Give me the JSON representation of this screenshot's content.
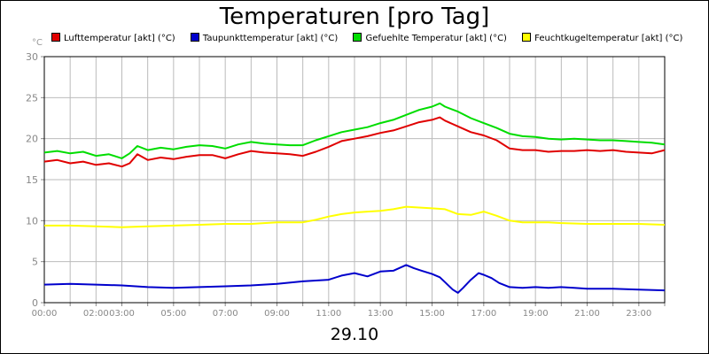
{
  "chart_data": {
    "type": "line",
    "title": "Temperaturen [pro Tag]",
    "date_label": "29.10",
    "y_unit": "°C",
    "ylim": [
      0,
      30
    ],
    "y_ticks": [
      "0",
      "5",
      "10",
      "15",
      "20",
      "25",
      "30"
    ],
    "x_range_hours": [
      0,
      24
    ],
    "x_ticks": [
      {
        "hour": 0,
        "label": "00:00"
      },
      {
        "hour": 2,
        "label": "02:00"
      },
      {
        "hour": 3,
        "label": "03:00"
      },
      {
        "hour": 5,
        "label": "05:00"
      },
      {
        "hour": 7,
        "label": "07:00"
      },
      {
        "hour": 9,
        "label": "09:00"
      },
      {
        "hour": 11,
        "label": "11:00"
      },
      {
        "hour": 13,
        "label": "13:00"
      },
      {
        "hour": 15,
        "label": "15:00"
      },
      {
        "hour": 17,
        "label": "17:00"
      },
      {
        "hour": 19,
        "label": "19:00"
      },
      {
        "hour": 21,
        "label": "21:00"
      },
      {
        "hour": 23,
        "label": "23:00"
      }
    ],
    "grid": true,
    "legend_position": "top",
    "series": [
      {
        "name": "Lufttemperatur [akt] (°C)",
        "color": "#e00000",
        "points": [
          [
            0,
            17.2
          ],
          [
            0.5,
            17.4
          ],
          [
            1,
            17.0
          ],
          [
            1.5,
            17.2
          ],
          [
            2,
            16.8
          ],
          [
            2.5,
            17.0
          ],
          [
            3,
            16.6
          ],
          [
            3.3,
            17.0
          ],
          [
            3.6,
            18.1
          ],
          [
            4,
            17.4
          ],
          [
            4.5,
            17.7
          ],
          [
            5,
            17.5
          ],
          [
            5.5,
            17.8
          ],
          [
            6,
            18.0
          ],
          [
            6.5,
            18.0
          ],
          [
            7,
            17.6
          ],
          [
            7.5,
            18.1
          ],
          [
            8,
            18.5
          ],
          [
            8.5,
            18.3
          ],
          [
            9,
            18.2
          ],
          [
            9.5,
            18.1
          ],
          [
            10,
            17.9
          ],
          [
            10.5,
            18.4
          ],
          [
            11,
            19.0
          ],
          [
            11.5,
            19.7
          ],
          [
            12,
            20.0
          ],
          [
            12.5,
            20.3
          ],
          [
            13,
            20.7
          ],
          [
            13.5,
            21.0
          ],
          [
            14,
            21.5
          ],
          [
            14.5,
            22.0
          ],
          [
            15,
            22.3
          ],
          [
            15.3,
            22.6
          ],
          [
            15.5,
            22.2
          ],
          [
            16,
            21.5
          ],
          [
            16.5,
            20.8
          ],
          [
            17,
            20.4
          ],
          [
            17.5,
            19.8
          ],
          [
            18,
            18.8
          ],
          [
            18.5,
            18.6
          ],
          [
            19,
            18.6
          ],
          [
            19.5,
            18.4
          ],
          [
            20,
            18.5
          ],
          [
            20.5,
            18.5
          ],
          [
            21,
            18.6
          ],
          [
            21.5,
            18.5
          ],
          [
            22,
            18.6
          ],
          [
            22.5,
            18.4
          ],
          [
            23,
            18.3
          ],
          [
            23.5,
            18.2
          ],
          [
            24,
            18.6
          ]
        ]
      },
      {
        "name": "Taupunkttemperatur [akt] (°C)",
        "color": "#0000cc",
        "points": [
          [
            0,
            2.2
          ],
          [
            1,
            2.3
          ],
          [
            2,
            2.2
          ],
          [
            3,
            2.1
          ],
          [
            4,
            1.9
          ],
          [
            5,
            1.8
          ],
          [
            6,
            1.9
          ],
          [
            7,
            2.0
          ],
          [
            8,
            2.1
          ],
          [
            9,
            2.3
          ],
          [
            10,
            2.6
          ],
          [
            11,
            2.8
          ],
          [
            11.5,
            3.3
          ],
          [
            12,
            3.6
          ],
          [
            12.5,
            3.2
          ],
          [
            13,
            3.8
          ],
          [
            13.5,
            3.9
          ],
          [
            14,
            4.6
          ],
          [
            14.3,
            4.2
          ],
          [
            14.6,
            3.9
          ],
          [
            15,
            3.5
          ],
          [
            15.3,
            3.1
          ],
          [
            15.5,
            2.5
          ],
          [
            15.8,
            1.6
          ],
          [
            16,
            1.2
          ],
          [
            16.2,
            1.8
          ],
          [
            16.5,
            2.8
          ],
          [
            16.8,
            3.6
          ],
          [
            17,
            3.4
          ],
          [
            17.3,
            3.0
          ],
          [
            17.6,
            2.4
          ],
          [
            18,
            1.9
          ],
          [
            18.5,
            1.8
          ],
          [
            19,
            1.9
          ],
          [
            19.5,
            1.8
          ],
          [
            20,
            1.9
          ],
          [
            20.5,
            1.8
          ],
          [
            21,
            1.7
          ],
          [
            22,
            1.7
          ],
          [
            23,
            1.6
          ],
          [
            24,
            1.5
          ]
        ]
      },
      {
        "name": "Gefuehlte Temperatur [akt] (°C)",
        "color": "#00dd00",
        "points": [
          [
            0,
            18.3
          ],
          [
            0.5,
            18.5
          ],
          [
            1,
            18.2
          ],
          [
            1.5,
            18.4
          ],
          [
            2,
            17.9
          ],
          [
            2.5,
            18.1
          ],
          [
            3,
            17.6
          ],
          [
            3.3,
            18.2
          ],
          [
            3.6,
            19.1
          ],
          [
            4,
            18.6
          ],
          [
            4.5,
            18.9
          ],
          [
            5,
            18.7
          ],
          [
            5.5,
            19.0
          ],
          [
            6,
            19.2
          ],
          [
            6.5,
            19.1
          ],
          [
            7,
            18.8
          ],
          [
            7.5,
            19.3
          ],
          [
            8,
            19.6
          ],
          [
            8.5,
            19.4
          ],
          [
            9,
            19.3
          ],
          [
            9.5,
            19.2
          ],
          [
            10,
            19.2
          ],
          [
            10.5,
            19.8
          ],
          [
            11,
            20.3
          ],
          [
            11.5,
            20.8
          ],
          [
            12,
            21.1
          ],
          [
            12.5,
            21.4
          ],
          [
            13,
            21.9
          ],
          [
            13.5,
            22.3
          ],
          [
            14,
            22.9
          ],
          [
            14.5,
            23.5
          ],
          [
            15,
            23.9
          ],
          [
            15.3,
            24.3
          ],
          [
            15.5,
            23.9
          ],
          [
            16,
            23.3
          ],
          [
            16.5,
            22.5
          ],
          [
            17,
            21.9
          ],
          [
            17.5,
            21.3
          ],
          [
            18,
            20.6
          ],
          [
            18.5,
            20.3
          ],
          [
            19,
            20.2
          ],
          [
            19.5,
            20.0
          ],
          [
            20,
            19.9
          ],
          [
            20.5,
            20.0
          ],
          [
            21,
            19.9
          ],
          [
            21.5,
            19.8
          ],
          [
            22,
            19.8
          ],
          [
            22.5,
            19.7
          ],
          [
            23,
            19.6
          ],
          [
            23.5,
            19.5
          ],
          [
            24,
            19.3
          ]
        ]
      },
      {
        "name": "Feuchtkugeltemperatur [akt] (°C)",
        "color": "#ffff00",
        "points": [
          [
            0,
            9.4
          ],
          [
            1,
            9.4
          ],
          [
            2,
            9.3
          ],
          [
            3,
            9.2
          ],
          [
            4,
            9.3
          ],
          [
            5,
            9.4
          ],
          [
            6,
            9.5
          ],
          [
            7,
            9.6
          ],
          [
            8,
            9.6
          ],
          [
            9,
            9.8
          ],
          [
            10,
            9.8
          ],
          [
            10.5,
            10.1
          ],
          [
            11,
            10.5
          ],
          [
            11.5,
            10.8
          ],
          [
            12,
            11.0
          ],
          [
            12.5,
            11.1
          ],
          [
            13,
            11.2
          ],
          [
            13.5,
            11.4
          ],
          [
            14,
            11.7
          ],
          [
            14.5,
            11.6
          ],
          [
            15,
            11.5
          ],
          [
            15.5,
            11.4
          ],
          [
            16,
            10.8
          ],
          [
            16.5,
            10.7
          ],
          [
            17,
            11.1
          ],
          [
            17.5,
            10.6
          ],
          [
            18,
            10.0
          ],
          [
            18.5,
            9.8
          ],
          [
            19,
            9.8
          ],
          [
            19.5,
            9.8
          ],
          [
            20,
            9.7
          ],
          [
            21,
            9.6
          ],
          [
            22,
            9.6
          ],
          [
            23,
            9.6
          ],
          [
            24,
            9.5
          ]
        ]
      }
    ]
  }
}
